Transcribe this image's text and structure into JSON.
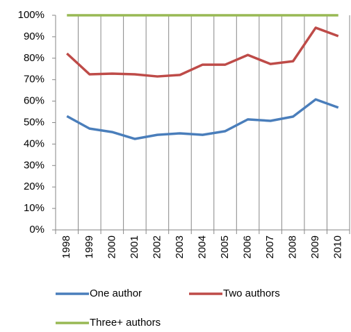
{
  "chart_data": {
    "type": "line",
    "categories": [
      "1998",
      "1999",
      "2000",
      "2001",
      "2002",
      "2003",
      "2004",
      "2005",
      "2006",
      "2007",
      "2008",
      "2009",
      "2010"
    ],
    "series": [
      {
        "name": "One author",
        "color": "#4a7ebb",
        "values": [
          53,
          47.2,
          45.6,
          42.4,
          44.3,
          45,
          44.3,
          46,
          51.5,
          50.8,
          52.8,
          60.8,
          57
        ]
      },
      {
        "name": "Two authors",
        "color": "#be4b48",
        "values": [
          82.2,
          72.5,
          72.8,
          72.5,
          71.5,
          72.2,
          77,
          77,
          81.5,
          77.3,
          78.6,
          94.2,
          90.3
        ]
      },
      {
        "name": "Three+ authors",
        "color": "#98b954",
        "values": [
          100,
          100,
          100,
          100,
          100,
          100,
          100,
          100,
          100,
          100,
          100,
          100,
          100
        ]
      }
    ],
    "ylim": [
      0,
      100
    ],
    "yticks": [
      {
        "value": 0,
        "label": "0%"
      },
      {
        "value": 10,
        "label": "10%"
      },
      {
        "value": 20,
        "label": "20%"
      },
      {
        "value": 30,
        "label": "30%"
      },
      {
        "value": 40,
        "label": "40%"
      },
      {
        "value": 50,
        "label": "50%"
      },
      {
        "value": 60,
        "label": "60%"
      },
      {
        "value": 70,
        "label": "70%"
      },
      {
        "value": 80,
        "label": "80%"
      },
      {
        "value": 90,
        "label": "90%"
      },
      {
        "value": 100,
        "label": "100%"
      }
    ],
    "legend": "bottom"
  }
}
